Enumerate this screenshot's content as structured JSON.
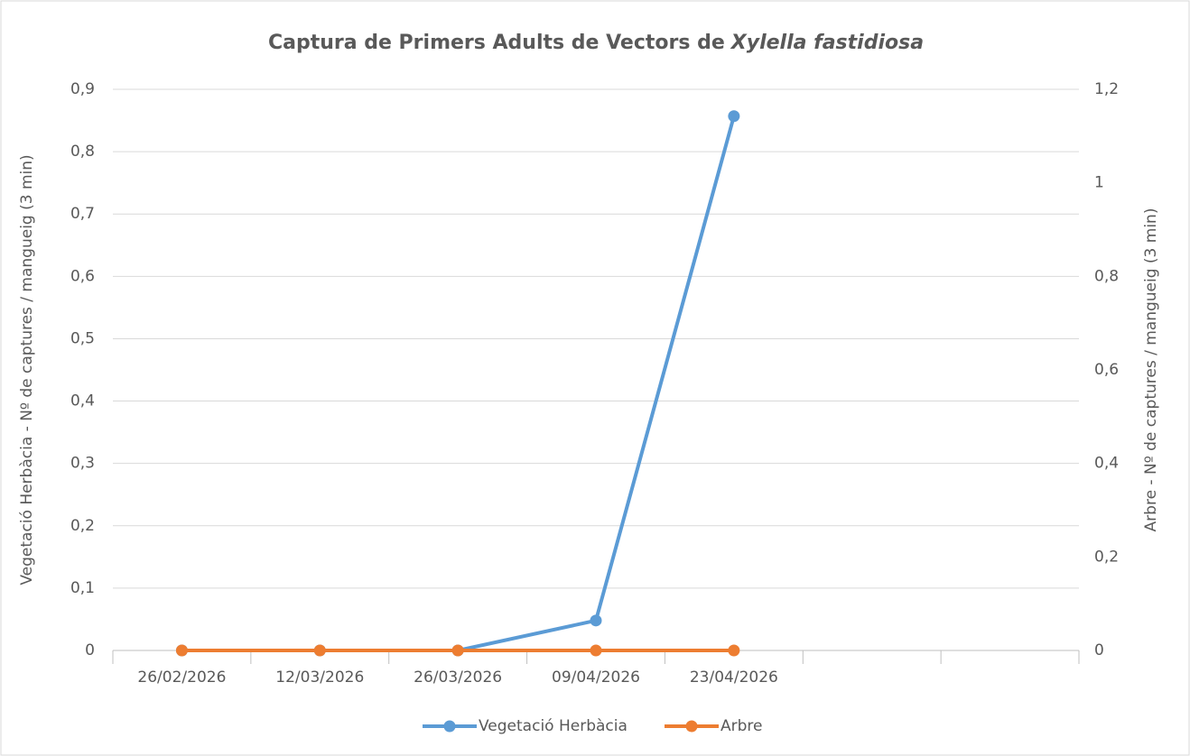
{
  "chart_data": {
    "type": "line",
    "title": [
      "Captura de Primers Adults de Vectors de",
      "Xylella fastidiosa"
    ],
    "y_label": "Vegetació Herbàcia - Nº de captures / mangueig (3 min)",
    "y2_label": "Arbre - Nº de captures / mangueig (3 min)",
    "categories": [
      "26/02/2026",
      "12/03/2026",
      "26/03/2026",
      "09/04/2026",
      "23/04/2026",
      null,
      null
    ],
    "series": [
      {
        "name": "Vegetació Herbàcia",
        "color": "#5b9bd5",
        "values": [
          0,
          0,
          0,
          0.048,
          0.857,
          null,
          null
        ]
      },
      {
        "name": "Arbre",
        "color": "#ed7d31",
        "axis": "y2",
        "values": [
          0,
          0,
          0,
          0,
          0,
          null,
          null
        ]
      }
    ],
    "ylim": [
      0,
      0.9
    ],
    "yticks": [
      0,
      {
        "value": 0.1,
        "label": "0,1"
      },
      {
        "value": 0.2,
        "label": "0,2"
      },
      {
        "value": 0.3,
        "label": "0,3"
      },
      {
        "value": 0.4,
        "label": "0,4"
      },
      {
        "value": 0.5,
        "label": "0,5"
      },
      {
        "value": 0.6,
        "label": "0,6"
      },
      {
        "value": 0.7,
        "label": "0,7"
      },
      {
        "value": 0.8,
        "label": "0,8"
      },
      {
        "value": 0.9,
        "label": "0,9"
      }
    ],
    "y2lim": [
      0,
      1.2
    ],
    "y2ticks": [
      0,
      {
        "value": 0.2,
        "label": "0,2"
      },
      {
        "value": 0.4,
        "label": "0,4"
      },
      {
        "value": 0.6,
        "label": "0,6"
      },
      {
        "value": 0.8,
        "label": "0,8"
      },
      1,
      {
        "value": 1.2,
        "label": "1,2"
      }
    ],
    "grid": true,
    "legend": "bottom"
  }
}
